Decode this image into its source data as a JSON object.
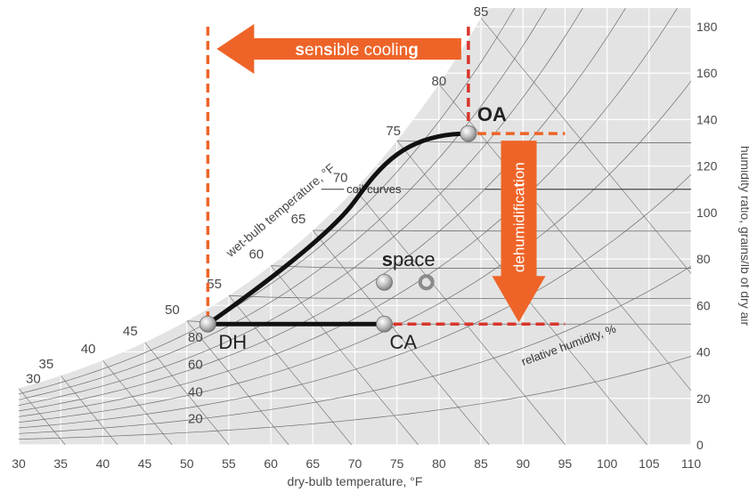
{
  "chart_data": {
    "type": "psychrometric",
    "xlabel": "dry-bulb temperature, °F",
    "ylabel": "humidity ratio, grains/lb of dry air",
    "xlim": [
      30,
      110
    ],
    "ylim": [
      0,
      180
    ],
    "x_ticks": [
      "30",
      "35",
      "40",
      "45",
      "50",
      "55",
      "60",
      "65",
      "70",
      "75",
      "80",
      "85",
      "90",
      "95",
      "100",
      "105",
      "110"
    ],
    "y_ticks": [
      "0",
      "20",
      "40",
      "60",
      "80",
      "100",
      "120",
      "140",
      "160",
      "180"
    ],
    "wet_bulb_label": "wet-bulb temperature, °F",
    "wet_bulb_ticks": [
      {
        "t": 30,
        "label": "30"
      },
      {
        "t": 35,
        "label": "35"
      },
      {
        "t": 40,
        "label": "40"
      },
      {
        "t": 45,
        "label": "45"
      },
      {
        "t": 50,
        "label": "50"
      },
      {
        "t": 55,
        "label": "55"
      },
      {
        "t": 60,
        "label": "60"
      },
      {
        "t": 65,
        "label": "65"
      },
      {
        "t": 70,
        "label": "70"
      },
      {
        "t": 75,
        "label": "75"
      },
      {
        "t": 80,
        "label": "80"
      },
      {
        "t": 85,
        "label": "85"
      }
    ],
    "rh_label": "relative humidity, %",
    "rh_ticks": [
      "80",
      "60",
      "40",
      "20"
    ],
    "coil_curves_label": "coil curves",
    "points": [
      {
        "id": "OA",
        "label": "OA",
        "x": 83.5,
        "y": 134
      },
      {
        "id": "DH",
        "label": "DH",
        "x": 52.5,
        "y": 52
      },
      {
        "id": "CA",
        "label": "CA",
        "x": 73.5,
        "y": 52
      },
      {
        "id": "space1",
        "label": "",
        "x": 73.5,
        "y": 70
      },
      {
        "id": "space2",
        "label": "",
        "x": 78.5,
        "y": 70
      }
    ],
    "space_label": {
      "bold": "s",
      "rest": "pace"
    },
    "sensible_cooling_label": [
      {
        "t": "s",
        "b": true
      },
      {
        "t": "en",
        "b": false
      },
      {
        "t": "s",
        "b": true
      },
      {
        "t": "ible coolin",
        "b": false
      },
      {
        "t": "g",
        "b": true
      }
    ],
    "dehumidification_label": [
      {
        "t": "dehumidifica",
        "b": false
      },
      {
        "t": "t",
        "b": true
      },
      {
        "t": "ion",
        "b": false
      }
    ],
    "colors": {
      "chart_bg": "#e3e3e3",
      "grid": "#ffffff",
      "curves": "#6e6e6e",
      "process": "#111111",
      "arrow": "#ee6428",
      "dashed_red": "#d9352b",
      "dashed_orange": "#ee6428"
    }
  }
}
